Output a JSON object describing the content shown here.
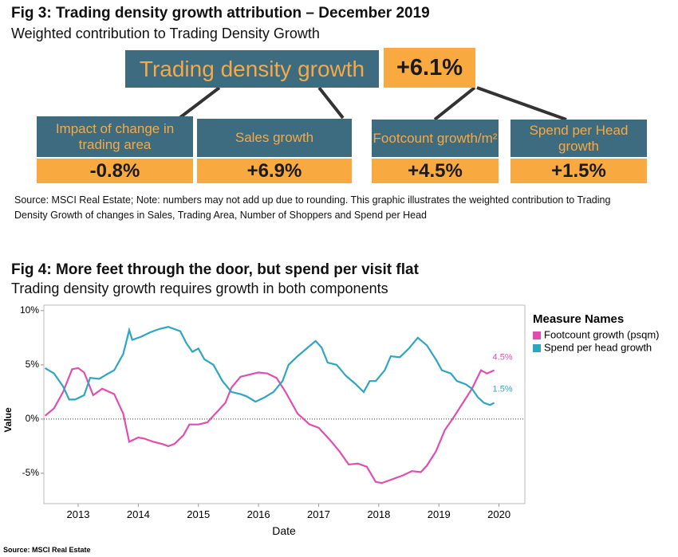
{
  "fig3": {
    "title": "Fig 3:  Trading density growth attribution – December 2019",
    "subtitle": "Weighted contribution to Trading Density Growth",
    "top": {
      "label": "Trading density growth",
      "value": "+6.1%"
    },
    "nodes": [
      {
        "label": "Impact of change in trading area",
        "value": "-0.8%"
      },
      {
        "label": "Sales growth",
        "value": "+6.9%"
      },
      {
        "label": "Footcount growth/m²",
        "value": "+4.5%"
      },
      {
        "label": "Spend per Head growth",
        "value": "+1.5%"
      }
    ],
    "note": "Source: MSCI Real Estate; Note: numbers may not add up due to rounding. This graphic illustrates the weighted contribution to Trading Density Growth of changes in Sales, Trading Area, Number of Shoppers and Spend per Head"
  },
  "chart_data": {
    "type": "line",
    "title": "Fig 4:  More feet through the door, but spend per visit flat",
    "subtitle": "Trading density growth requires growth in both components",
    "x_label": "Date",
    "y_label": "Value",
    "legend_title": "Measure Names",
    "legend": "right",
    "source": "Source: MSCI Real Estate",
    "xlim": [
      2012.43,
      2020.43
    ],
    "xticks": [
      2013,
      2014,
      2015,
      2016,
      2017,
      2018,
      2019,
      2020
    ],
    "ylim": [
      -7.8,
      10.5
    ],
    "yticks": [
      {
        "value": -5,
        "label": "-5%"
      },
      {
        "value": 0,
        "label": "0%"
      },
      {
        "value": 5,
        "label": "5%"
      },
      {
        "value": 10,
        "label": "10%"
      }
    ],
    "series": [
      {
        "name": "Footcount growth (psqm)",
        "color": "#e04fb0",
        "end_label": "4.5%",
        "x": [
          2012.45,
          2012.6,
          2012.75,
          2012.9,
          2013.0,
          2013.1,
          2013.25,
          2013.4,
          2013.6,
          2013.75,
          2013.85,
          2014.0,
          2014.1,
          2014.25,
          2014.4,
          2014.5,
          2014.6,
          2014.75,
          2014.85,
          2015.0,
          2015.15,
          2015.3,
          2015.45,
          2015.55,
          2015.7,
          2015.85,
          2016.0,
          2016.15,
          2016.3,
          2016.45,
          2016.65,
          2016.85,
          2017.0,
          2017.2,
          2017.35,
          2017.5,
          2017.65,
          2017.8,
          2017.95,
          2018.05,
          2018.2,
          2018.4,
          2018.55,
          2018.7,
          2018.8,
          2018.95,
          2019.1,
          2019.25,
          2019.4,
          2019.55,
          2019.7,
          2019.8,
          2019.92
        ],
        "values": [
          0.3,
          1.0,
          2.5,
          4.6,
          4.7,
          4.3,
          2.2,
          2.8,
          2.3,
          0.5,
          -2.1,
          -1.7,
          -1.8,
          -2.1,
          -2.3,
          -2.5,
          -2.3,
          -1.5,
          -0.5,
          -0.5,
          -0.3,
          0.6,
          1.5,
          2.9,
          3.9,
          4.1,
          4.3,
          4.2,
          3.8,
          2.5,
          0.5,
          -0.5,
          -0.8,
          -2.0,
          -3.0,
          -4.2,
          -4.1,
          -4.4,
          -5.8,
          -5.9,
          -5.6,
          -5.2,
          -4.8,
          -4.9,
          -4.3,
          -3.0,
          -1.0,
          0.2,
          1.5,
          2.8,
          4.5,
          4.2,
          4.5
        ]
      },
      {
        "name": "Spend per head growth",
        "color": "#2fa6bf",
        "end_label": "1.5%",
        "x": [
          2012.45,
          2012.6,
          2012.75,
          2012.85,
          2012.95,
          2013.1,
          2013.2,
          2013.35,
          2013.5,
          2013.6,
          2013.75,
          2013.85,
          2013.9,
          2014.05,
          2014.2,
          2014.35,
          2014.5,
          2014.7,
          2014.8,
          2014.9,
          2015.0,
          2015.1,
          2015.25,
          2015.4,
          2015.55,
          2015.7,
          2015.8,
          2015.95,
          2016.1,
          2016.25,
          2016.4,
          2016.5,
          2016.65,
          2016.8,
          2016.95,
          2017.05,
          2017.15,
          2017.3,
          2017.45,
          2017.6,
          2017.75,
          2017.85,
          2017.95,
          2018.1,
          2018.2,
          2018.35,
          2018.5,
          2018.65,
          2018.8,
          2018.95,
          2019.05,
          2019.2,
          2019.3,
          2019.45,
          2019.55,
          2019.65,
          2019.75,
          2019.85,
          2019.92
        ],
        "values": [
          4.7,
          4.2,
          3.0,
          1.8,
          1.8,
          2.2,
          3.8,
          3.7,
          4.2,
          4.5,
          6.0,
          8.2,
          7.3,
          7.6,
          8.0,
          8.3,
          8.5,
          8.1,
          7.0,
          6.2,
          6.5,
          5.5,
          5.0,
          3.5,
          2.5,
          2.3,
          2.1,
          1.6,
          2.0,
          2.5,
          3.5,
          5.0,
          5.8,
          6.5,
          7.2,
          6.6,
          5.2,
          5.0,
          4.0,
          3.3,
          2.5,
          3.5,
          3.5,
          4.5,
          5.8,
          5.7,
          6.5,
          7.5,
          6.8,
          5.5,
          4.5,
          4.2,
          3.5,
          3.2,
          2.8,
          2.0,
          1.5,
          1.3,
          1.5
        ]
      }
    ]
  }
}
